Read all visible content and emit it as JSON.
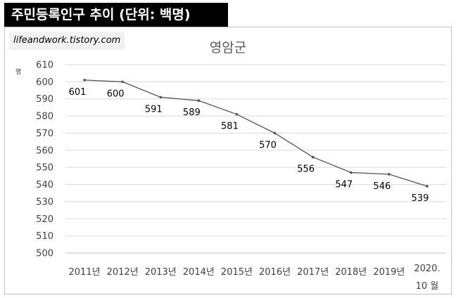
{
  "header": {
    "title": "주민등록인구 추이 (단위: 백명)"
  },
  "source": {
    "text": "lifeandwork.tistory.com"
  },
  "chart_data": {
    "type": "line",
    "title": "영암군",
    "unit_label": "명",
    "categories": [
      "2011년",
      "2012년",
      "2013년",
      "2014년",
      "2015년",
      "2016년",
      "2017년",
      "2018년",
      "2019년",
      "2020. 10 월"
    ],
    "values": [
      601,
      600,
      591,
      589,
      581,
      570,
      556,
      547,
      546,
      539
    ],
    "ylim": [
      500,
      610
    ],
    "yticks": [
      500,
      510,
      520,
      530,
      540,
      550,
      560,
      570,
      580,
      590,
      600,
      610
    ],
    "grid": true,
    "legend": "none",
    "line_color": "#44546a"
  }
}
